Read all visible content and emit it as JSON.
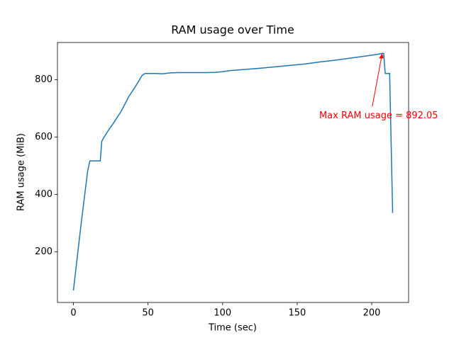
{
  "chart_data": {
    "type": "line",
    "title": "RAM usage over Time",
    "xlabel": "Time (sec)",
    "ylabel": "RAM usage (MiB)",
    "x": [
      0,
      5,
      9.5,
      11,
      18,
      19,
      20,
      23,
      27,
      32,
      37,
      42,
      46,
      48,
      55,
      60,
      65,
      70,
      90,
      95,
      100,
      105,
      110,
      115,
      125,
      135,
      145,
      155,
      165,
      175,
      185,
      195,
      203,
      207,
      208,
      209,
      212,
      214
    ],
    "series": [
      {
        "name": "RAM usage",
        "color": "#1f77b4",
        "values": [
          65,
          290,
          480,
          517,
          517,
          585,
          595,
          620,
          650,
          690,
          740,
          780,
          815,
          822,
          822,
          821,
          824,
          825,
          825,
          826,
          828,
          832,
          834,
          836,
          840,
          845,
          850,
          855,
          862,
          868,
          875,
          882,
          888,
          892.05,
          892,
          822,
          822,
          335
        ]
      }
    ],
    "xlim": [
      -10.7,
      224.7
    ],
    "ylim": [
      23,
      930
    ],
    "xticks": [
      0,
      50,
      100,
      150,
      200
    ],
    "yticks": [
      200,
      400,
      600,
      800
    ],
    "annotation": {
      "text": "Max RAM usage = 892.05",
      "x": 207,
      "y": 892.05,
      "color": "red"
    }
  }
}
